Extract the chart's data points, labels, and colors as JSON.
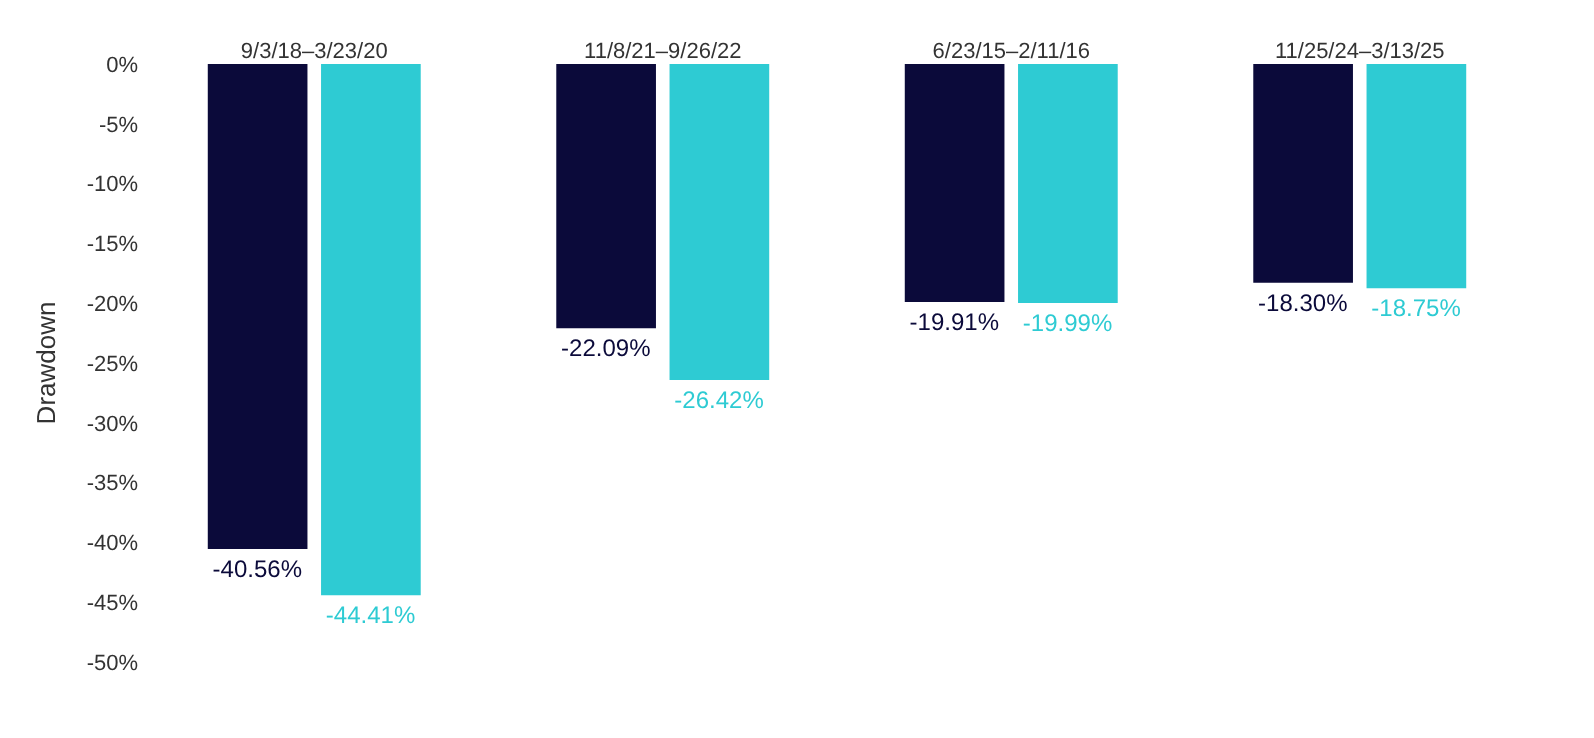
{
  "chart_data": {
    "type": "bar",
    "ylabel": "Drawdown",
    "categories": [
      "9/3/18–3/23/20",
      "11/8/21–9/26/22",
      "6/23/15–2/11/16",
      "11/25/24–3/13/25"
    ],
    "series": [
      {
        "color": "#0b0a3a",
        "values": [
          -40.56,
          -22.09,
          -19.91,
          -18.3
        ],
        "value_labels": [
          "-40.56%",
          "-22.09%",
          "-19.91%",
          "-18.30%"
        ]
      },
      {
        "color": "#2ecbd3",
        "values": [
          -44.41,
          -26.42,
          -19.99,
          -18.75
        ],
        "value_labels": [
          "-44.41%",
          "-26.42%",
          "-19.99%",
          "-18.75%"
        ]
      }
    ],
    "ylim": [
      -50,
      0
    ],
    "yticks": [
      {
        "value": 0,
        "label": "0%"
      },
      {
        "value": -5,
        "label": "-5%"
      },
      {
        "value": -10,
        "label": "-10%"
      },
      {
        "value": -15,
        "label": "-15%"
      },
      {
        "value": -20,
        "label": "-20%"
      },
      {
        "value": -25,
        "label": "-25%"
      },
      {
        "value": -30,
        "label": "-30%"
      },
      {
        "value": -35,
        "label": "-35%"
      },
      {
        "value": -40,
        "label": "-40%"
      },
      {
        "value": -45,
        "label": "-45%"
      },
      {
        "value": -50,
        "label": "-50%"
      }
    ],
    "grid": false
  }
}
